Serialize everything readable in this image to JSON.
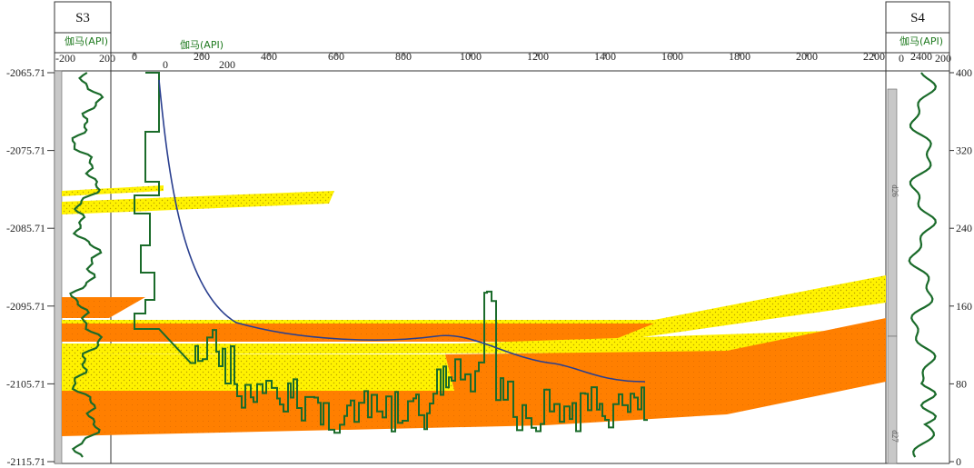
{
  "wells": {
    "left": {
      "name": "S3",
      "curve_title": "伽马(API)",
      "scale_min": "-200",
      "scale_max": "200"
    },
    "right": {
      "name": "S4",
      "curve_title": "伽马(API)",
      "scale_min": "0",
      "scale_max": "200",
      "scale_extra": "2400"
    }
  },
  "main_curve_title": "伽马(API)",
  "main_gamma_scale": [
    "0",
    "200"
  ],
  "top_axis_ticks": [
    "0",
    "200",
    "400",
    "600",
    "800",
    "1000",
    "1200",
    "1400",
    "1600",
    "1800",
    "2000",
    "2200"
  ],
  "left_depth_ticks": [
    "-2065.71",
    "-2075.71",
    "-2085.71",
    "-2095.71",
    "-2105.71",
    "-2115.71"
  ],
  "right_axis_ticks": [
    "400",
    "320",
    "240",
    "160",
    "80",
    "0"
  ],
  "zone_labels": [
    "d26",
    "d27"
  ],
  "colors": {
    "sand_yellow": "#fff200",
    "sand_orange": "#ff7f00",
    "gamma_green": "#1a6b2a",
    "trend_blue": "#2a3f8f",
    "track_gray": "#c8c8c8"
  }
}
